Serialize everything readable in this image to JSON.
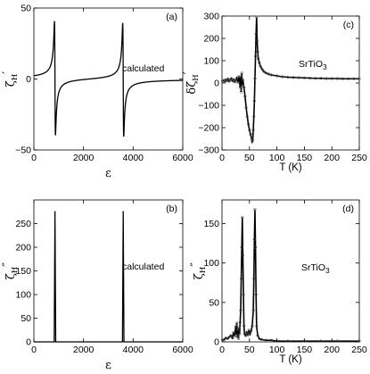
{
  "chart_data": [
    {
      "id": "a",
      "type": "line",
      "panel_label": "(a)",
      "annotation": "calculated",
      "xlabel": "ε",
      "ylabel": {
        "symbol": "ζ",
        "subscript": "H",
        "prime": "′"
      },
      "xlim": [
        0,
        6000
      ],
      "ylim": [
        -50,
        50
      ],
      "xticks": [
        "0",
        "2000",
        "4000",
        "6000"
      ],
      "yticks": [
        "−50",
        "0",
        "50"
      ],
      "ytick_values": [
        -50,
        0,
        50
      ],
      "xtick_values": [
        0,
        2000,
        4000,
        6000
      ],
      "series": [
        {
          "resonances_at": [
            850,
            3600
          ],
          "peak_height": 40,
          "baseline": 0
        }
      ]
    },
    {
      "id": "b",
      "type": "line",
      "panel_label": "(b)",
      "annotation": "calculated",
      "xlabel": "ε",
      "ylabel": {
        "symbol": "ζ",
        "subscript": "H",
        "prime": "″"
      },
      "xlim": [
        0,
        6000
      ],
      "ylim": [
        0,
        300
      ],
      "xticks": [
        "0",
        "2000",
        "4000",
        "6000"
      ],
      "yticks": [
        "0",
        "50",
        "100",
        "150",
        "200",
        "250"
      ],
      "ytick_values": [
        0,
        50,
        100,
        150,
        200,
        250
      ],
      "xtick_values": [
        0,
        2000,
        4000,
        6000
      ],
      "series": [
        {
          "peaks": [
            {
              "x": 850,
              "y": 275
            },
            {
              "x": 3600,
              "y": 275
            }
          ]
        }
      ]
    },
    {
      "id": "c",
      "type": "scatter",
      "panel_label": "(c)",
      "annotation": {
        "text": "SrTiO",
        "subscript": "3"
      },
      "xlabel": "T (K)",
      "ylabel": {
        "symbol": "δζ",
        "subscript": "H",
        "prime": "′"
      },
      "xlim": [
        0,
        250
      ],
      "ylim": [
        -300,
        300
      ],
      "xticks": [
        "0",
        "50",
        "100",
        "150",
        "200",
        "250"
      ],
      "yticks": [
        "−300",
        "−200",
        "−100",
        "0",
        "100",
        "200",
        "300"
      ],
      "ytick_values": [
        -300,
        -200,
        -100,
        0,
        100,
        200,
        300
      ],
      "xtick_values": [
        0,
        50,
        100,
        150,
        200,
        250
      ],
      "series": [
        {
          "points": [
            [
              1,
              8
            ],
            [
              3,
              12
            ],
            [
              5,
              6
            ],
            [
              7,
              15
            ],
            [
              9,
              10
            ],
            [
              11,
              18
            ],
            [
              13,
              8
            ],
            [
              15,
              14
            ],
            [
              17,
              20
            ],
            [
              19,
              10
            ],
            [
              21,
              16
            ],
            [
              23,
              5
            ],
            [
              25,
              12
            ],
            [
              27,
              22
            ],
            [
              29,
              2
            ],
            [
              31,
              30
            ],
            [
              33,
              -20
            ],
            [
              34,
              28
            ],
            [
              35,
              -40
            ],
            [
              36,
              45
            ],
            [
              37,
              -10
            ],
            [
              38,
              15
            ],
            [
              40,
              -20
            ],
            [
              42,
              -60
            ],
            [
              44,
              -110
            ],
            [
              46,
              -150
            ],
            [
              48,
              -185
            ],
            [
              50,
              -210
            ],
            [
              52,
              -230
            ],
            [
              54,
              -250
            ],
            [
              55,
              -262
            ],
            [
              56,
              -255
            ],
            [
              57,
              -210
            ],
            [
              58,
              -150
            ],
            [
              59,
              -80
            ],
            [
              60,
              20
            ],
            [
              61,
              120
            ],
            [
              62,
              220
            ],
            [
              63,
              295
            ],
            [
              64,
              190
            ],
            [
              65,
              140
            ],
            [
              66,
              110
            ],
            [
              68,
              90
            ],
            [
              70,
              75
            ],
            [
              73,
              62
            ],
            [
              76,
              52
            ],
            [
              80,
              45
            ],
            [
              85,
              40
            ],
            [
              90,
              36
            ],
            [
              100,
              32
            ],
            [
              110,
              28
            ],
            [
              120,
              26
            ],
            [
              130,
              25
            ],
            [
              140,
              24
            ],
            [
              150,
              23
            ],
            [
              160,
              22
            ],
            [
              170,
              21
            ],
            [
              180,
              21
            ],
            [
              190,
              20
            ],
            [
              200,
              20
            ],
            [
              210,
              20
            ],
            [
              220,
              19
            ],
            [
              230,
              19
            ],
            [
              240,
              19
            ],
            [
              250,
              19
            ]
          ]
        }
      ]
    },
    {
      "id": "d",
      "type": "scatter",
      "panel_label": "(d)",
      "annotation": {
        "text": "SrTiO",
        "subscript": "3"
      },
      "xlabel": "T (K)",
      "ylabel": {
        "symbol": "ζ",
        "subscript": "H",
        "prime": "″"
      },
      "xlim": [
        0,
        250
      ],
      "ylim": [
        0,
        180
      ],
      "xticks": [
        "0",
        "50",
        "100",
        "150",
        "200",
        "250"
      ],
      "yticks": [
        "0",
        "50",
        "100",
        "150"
      ],
      "ytick_values": [
        0,
        50,
        100,
        150
      ],
      "xtick_values": [
        0,
        50,
        100,
        150,
        200,
        250
      ],
      "series": [
        {
          "points": [
            [
              1,
              2
            ],
            [
              4,
              3
            ],
            [
              7,
              5
            ],
            [
              10,
              4
            ],
            [
              13,
              6
            ],
            [
              16,
              8
            ],
            [
              19,
              5
            ],
            [
              21,
              12
            ],
            [
              23,
              7
            ],
            [
              25,
              20
            ],
            [
              26,
              9
            ],
            [
              27,
              24
            ],
            [
              28,
              6
            ],
            [
              29,
              15
            ],
            [
              30,
              4
            ],
            [
              31,
              18
            ],
            [
              32,
              10
            ],
            [
              33,
              25
            ],
            [
              34,
              40
            ],
            [
              35,
              80
            ],
            [
              36,
              120
            ],
            [
              37,
              158
            ],
            [
              38,
              110
            ],
            [
              39,
              60
            ],
            [
              40,
              20
            ],
            [
              41,
              10
            ],
            [
              43,
              8
            ],
            [
              45,
              12
            ],
            [
              47,
              9
            ],
            [
              49,
              15
            ],
            [
              51,
              10
            ],
            [
              53,
              14
            ],
            [
              55,
              20
            ],
            [
              57,
              40
            ],
            [
              58,
              80
            ],
            [
              59,
              130
            ],
            [
              60,
              168
            ],
            [
              61,
              120
            ],
            [
              62,
              60
            ],
            [
              63,
              20
            ],
            [
              65,
              8
            ],
            [
              68,
              4
            ],
            [
              72,
              3
            ],
            [
              80,
              2
            ],
            [
              90,
              2
            ],
            [
              100,
              1
            ],
            [
              120,
              1
            ],
            [
              150,
              1
            ],
            [
              180,
              1
            ],
            [
              210,
              1
            ],
            [
              250,
              1
            ]
          ]
        }
      ]
    }
  ]
}
